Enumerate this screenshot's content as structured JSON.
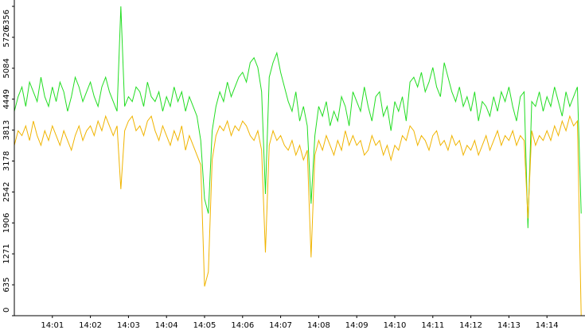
{
  "chart_data": {
    "type": "line",
    "categories": [
      null,
      null,
      null,
      null,
      null,
      null,
      null,
      null,
      null,
      null,
      "14:01",
      null,
      null,
      null,
      null,
      null,
      null,
      null,
      null,
      null,
      "14:02",
      null,
      null,
      null,
      null,
      null,
      null,
      null,
      null,
      null,
      "14:03",
      null,
      null,
      null,
      null,
      null,
      null,
      null,
      null,
      null,
      "14:04",
      null,
      null,
      null,
      null,
      null,
      null,
      null,
      null,
      null,
      "14:05",
      null,
      null,
      null,
      null,
      null,
      null,
      null,
      null,
      null,
      "14:06",
      null,
      null,
      null,
      null,
      null,
      null,
      null,
      null,
      null,
      "14:07",
      null,
      null,
      null,
      null,
      null,
      null,
      null,
      null,
      null,
      "14:08",
      null,
      null,
      null,
      null,
      null,
      null,
      null,
      null,
      null,
      "14:09",
      null,
      null,
      null,
      null,
      null,
      null,
      null,
      null,
      null,
      "14:10",
      null,
      null,
      null,
      null,
      null,
      null,
      null,
      null,
      null,
      "14:11",
      null,
      null,
      null,
      null,
      null,
      null,
      null,
      null,
      null,
      "14:12",
      null,
      null,
      null,
      null,
      null,
      null,
      null,
      null,
      null,
      "14:13",
      null,
      null,
      null,
      null,
      null,
      null,
      null,
      null,
      null,
      "14:14",
      null,
      null,
      null,
      null,
      null,
      null,
      null,
      null,
      null
    ],
    "series": [
      {
        "color": "#22dd22",
        "values": [
          4200,
          4500,
          4700,
          4300,
          4800,
          4600,
          4400,
          4900,
          4500,
          4300,
          4700,
          4400,
          4800,
          4600,
          4200,
          4500,
          4900,
          4700,
          4400,
          4600,
          4800,
          4500,
          4300,
          4700,
          4900,
          4600,
          4400,
          4200,
          6356,
          4300,
          4500,
          4400,
          4700,
          4600,
          4300,
          4800,
          4500,
          4400,
          4600,
          4200,
          4500,
          4300,
          4700,
          4400,
          4600,
          4200,
          4500,
          4300,
          4100,
          3600,
          2400,
          2100,
          3800,
          4300,
          4600,
          4400,
          4800,
          4500,
          4700,
          4900,
          5000,
          4800,
          5200,
          5300,
          5100,
          4600,
          2500,
          4900,
          5200,
          5400,
          5000,
          4700,
          4400,
          4200,
          4600,
          4000,
          4300,
          3900,
          2300,
          3700,
          4300,
          4100,
          4400,
          3900,
          4200,
          4000,
          4500,
          4300,
          3900,
          4600,
          4400,
          4200,
          4700,
          4300,
          4000,
          4500,
          4600,
          4100,
          4300,
          3800,
          4400,
          4200,
          4500,
          4000,
          4800,
          4900,
          4700,
          5000,
          4600,
          4800,
          5100,
          4700,
          4500,
          5200,
          4900,
          4600,
          4400,
          4700,
          4300,
          4500,
          4200,
          4600,
          4000,
          4400,
          4300,
          4100,
          4500,
          4200,
          4600,
          4400,
          4700,
          4300,
          4000,
          4500,
          4600,
          1800,
          4400,
          4300,
          4600,
          4200,
          4500,
          4300,
          4700,
          4400,
          4100,
          4600,
          4300,
          4500,
          4700,
          2100
        ]
      },
      {
        "color": "#f0b400",
        "values": [
          3500,
          3800,
          3700,
          3900,
          3600,
          4000,
          3700,
          3500,
          3800,
          3600,
          3900,
          3700,
          3500,
          3800,
          3600,
          3400,
          3700,
          3900,
          3600,
          3800,
          3900,
          3700,
          4000,
          3800,
          4100,
          3900,
          3700,
          3900,
          2600,
          3800,
          4000,
          4100,
          3800,
          3900,
          3700,
          4000,
          4100,
          3800,
          3600,
          3900,
          3700,
          3500,
          3800,
          3600,
          3900,
          3400,
          3700,
          3500,
          3300,
          3100,
          600,
          900,
          3200,
          3700,
          3900,
          3800,
          4000,
          3700,
          3900,
          3800,
          4000,
          3900,
          3700,
          3600,
          3800,
          3400,
          1300,
          3500,
          3800,
          3600,
          3700,
          3500,
          3400,
          3600,
          3300,
          3500,
          3200,
          3400,
          1200,
          3300,
          3600,
          3400,
          3700,
          3500,
          3300,
          3600,
          3400,
          3800,
          3500,
          3700,
          3500,
          3600,
          3300,
          3400,
          3700,
          3500,
          3600,
          3300,
          3500,
          3200,
          3500,
          3400,
          3700,
          3600,
          3900,
          3800,
          3500,
          3700,
          3600,
          3400,
          3700,
          3800,
          3500,
          3600,
          3400,
          3700,
          3500,
          3600,
          3300,
          3500,
          3400,
          3600,
          3300,
          3500,
          3700,
          3400,
          3600,
          3800,
          3500,
          3700,
          3600,
          3800,
          3500,
          3700,
          3600,
          2000,
          3800,
          3500,
          3700,
          3600,
          3800,
          3600,
          3900,
          3700,
          4000,
          3800,
          4100,
          3900,
          4000,
          0
        ]
      }
    ],
    "ylim": [
      0,
      6356
    ],
    "yticks": [
      0,
      635,
      1271,
      1906,
      2542,
      3178,
      3813,
      4449,
      5084,
      5720,
      6356
    ]
  }
}
